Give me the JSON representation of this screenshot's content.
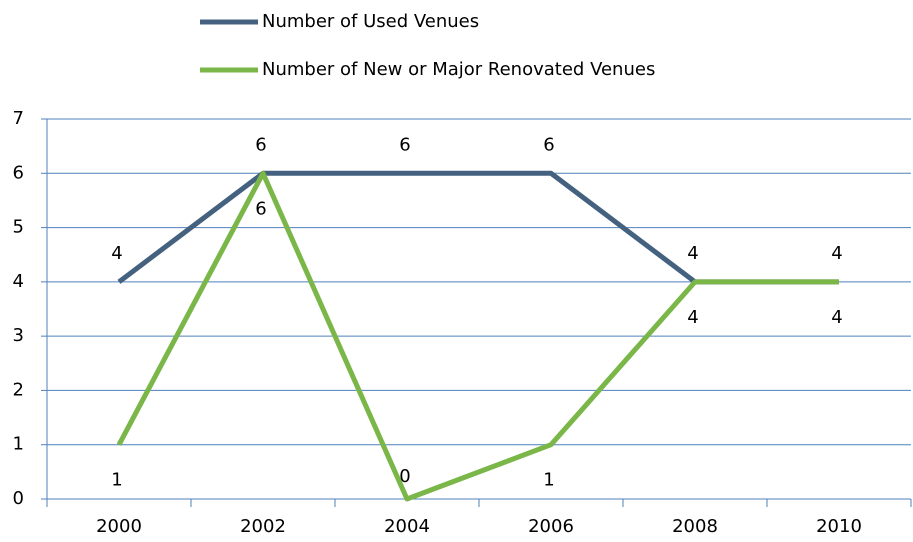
{
  "chart_data": {
    "type": "line",
    "categories": [
      "2000",
      "2002",
      "2004",
      "2006",
      "2008",
      "2010"
    ],
    "series": [
      {
        "name": "Number of Used Venues",
        "color": "#44617f",
        "values": [
          4,
          6,
          6,
          6,
          4,
          4
        ]
      },
      {
        "name": "Number of New or Major Renovated Venues",
        "color": "#7ab648",
        "values": [
          1,
          6,
          0,
          1,
          4,
          4
        ]
      }
    ],
    "ylim": [
      0,
      7
    ],
    "yticks": [
      0,
      1,
      2,
      3,
      4,
      5,
      6,
      7
    ],
    "grid": true,
    "legend": "top"
  }
}
